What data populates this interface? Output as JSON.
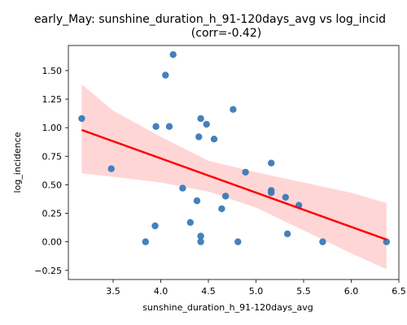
{
  "chart_data": {
    "type": "scatter",
    "title": "early_May: sunshine_duration_h_91-120days_avg vs log_incid",
    "subtitle": "(corr=-0.42)",
    "xlabel": "sunshine_duration_h_91-120days_avg",
    "ylabel": "log_incidence",
    "xlim": [
      3.03,
      6.5
    ],
    "ylim": [
      -0.33,
      1.72
    ],
    "x_ticks": [
      3.5,
      4.0,
      4.5,
      5.0,
      5.5,
      6.0,
      6.5
    ],
    "x_tick_labels": [
      "3.5",
      "4.0",
      "4.5",
      "5.0",
      "5.5",
      "6.0",
      "6.5"
    ],
    "y_ticks": [
      -0.25,
      0.0,
      0.25,
      0.5,
      0.75,
      1.0,
      1.25,
      1.5
    ],
    "y_tick_labels": [
      "−0.25",
      "0.00",
      "0.25",
      "0.50",
      "0.75",
      "1.00",
      "1.25",
      "1.50"
    ],
    "grid": false,
    "points": [
      {
        "x": 3.17,
        "y": 1.08
      },
      {
        "x": 3.48,
        "y": 0.64
      },
      {
        "x": 3.84,
        "y": 0.0
      },
      {
        "x": 3.94,
        "y": 0.14
      },
      {
        "x": 3.95,
        "y": 1.01
      },
      {
        "x": 4.05,
        "y": 1.46
      },
      {
        "x": 4.09,
        "y": 1.01
      },
      {
        "x": 4.13,
        "y": 1.64
      },
      {
        "x": 4.23,
        "y": 0.47
      },
      {
        "x": 4.31,
        "y": 0.17
      },
      {
        "x": 4.38,
        "y": 0.36
      },
      {
        "x": 4.4,
        "y": 0.92
      },
      {
        "x": 4.42,
        "y": 1.08
      },
      {
        "x": 4.42,
        "y": 0.05
      },
      {
        "x": 4.42,
        "y": 0.0
      },
      {
        "x": 4.48,
        "y": 1.03
      },
      {
        "x": 4.56,
        "y": 0.9
      },
      {
        "x": 4.64,
        "y": 0.29
      },
      {
        "x": 4.68,
        "y": 0.4
      },
      {
        "x": 4.76,
        "y": 1.16
      },
      {
        "x": 4.81,
        "y": 0.0
      },
      {
        "x": 4.89,
        "y": 0.61
      },
      {
        "x": 5.16,
        "y": 0.69
      },
      {
        "x": 5.16,
        "y": 0.45
      },
      {
        "x": 5.16,
        "y": 0.43
      },
      {
        "x": 5.31,
        "y": 0.39
      },
      {
        "x": 5.33,
        "y": 0.07
      },
      {
        "x": 5.45,
        "y": 0.32
      },
      {
        "x": 5.7,
        "y": 0.0
      },
      {
        "x": 6.37,
        "y": 0.0
      }
    ],
    "regression": {
      "x": [
        3.17,
        6.37
      ],
      "y": [
        0.98,
        0.02
      ]
    },
    "confidence_band": {
      "x": [
        3.17,
        3.5,
        4.0,
        4.5,
        5.0,
        5.5,
        6.0,
        6.37
      ],
      "upper": [
        1.38,
        1.15,
        0.92,
        0.71,
        0.61,
        0.52,
        0.43,
        0.34
      ],
      "lower": [
        0.6,
        0.57,
        0.52,
        0.44,
        0.3,
        0.1,
        -0.1,
        -0.24
      ]
    },
    "colors": {
      "points": "#3a7ab8",
      "regression_line": "#ff0000",
      "confidence_band": "#ffc8c8"
    }
  }
}
